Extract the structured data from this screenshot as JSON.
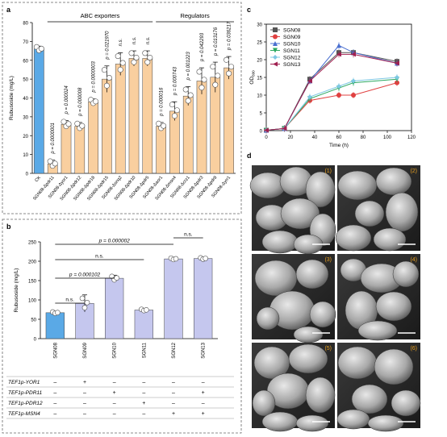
{
  "panels": {
    "a": "a",
    "b": "b",
    "c": "c",
    "d": "d"
  },
  "panel_a": {
    "groups": [
      "ABC exporters",
      "Regulators"
    ]
  },
  "panel_b": {
    "table_rows": [
      {
        "label": "TEF1p-YOR1",
        "marks": [
          "–",
          "+",
          "–",
          "–",
          "–",
          "–"
        ]
      },
      {
        "label": "TEF1p-PDR11",
        "marks": [
          "–",
          "–",
          "+",
          "–",
          "–",
          "+"
        ]
      },
      {
        "label": "TEF1p-PDR12",
        "marks": [
          "–",
          "–",
          "–",
          "+",
          "–",
          "–"
        ]
      },
      {
        "label": "TEF1p-MSN4",
        "marks": [
          "–",
          "–",
          "–",
          "–",
          "+",
          "+"
        ]
      }
    ],
    "comparisons": [
      {
        "label": "n.s."
      },
      {
        "label": "p = 0.000102"
      },
      {
        "label": "n.s."
      },
      {
        "label": "p = 0.000002"
      },
      {
        "label": "n.s."
      }
    ]
  },
  "panel_d": {
    "micrographs": [
      "(1)",
      "(2)",
      "(3)",
      "(4)",
      "(5)",
      "(6)"
    ],
    "colors": {
      "label": "#e8a020"
    }
  },
  "chart_data": [
    {
      "id": "a",
      "type": "bar",
      "ylabel": "Rubusoside (mg/L)",
      "ylim": [
        0,
        80
      ],
      "yticks": [
        0,
        10,
        20,
        30,
        40,
        50,
        60,
        70,
        80
      ],
      "categories": [
        "CK",
        "SGN08-Δpdr11",
        "SGN08-Δyor1",
        "SGN08-Δpdr12",
        "SGN08-Δpdr18",
        "SGN08-Δpdr15",
        "SGN08-Δsnq2",
        "SGN08-Δpdr10",
        "SGN08-Δpdr5",
        "SGN08-Δaor1",
        "SGN08-Δmsn4",
        "SGN08-Δcrz1",
        "SGN08-Δpdr3",
        "SGN08-Δpdr8",
        "SGN08-Δyrr1"
      ],
      "values": [
        66,
        5,
        26,
        25,
        38,
        50,
        58,
        61,
        61,
        25,
        33,
        41,
        49,
        51,
        56
      ],
      "errors": [
        1.5,
        2,
        2,
        2,
        1.5,
        7,
        6,
        4,
        4,
        2,
        5,
        5,
        7,
        8,
        6
      ],
      "pvalues": [
        "",
        "p = 0.0000001",
        "p = 0.000024",
        "p = 0.000008",
        "p = 0.0000003",
        "p = 0.021970",
        "n.s.",
        "n.s.",
        "n.s.",
        "p = 0.000016",
        "p = 0.000743",
        "p = 0.001223",
        "p = 0.042293",
        "p = 0.013176",
        "p = 0.036217"
      ],
      "colors": {
        "control": "#5aa9e6",
        "bars": "#f9cf9f",
        "dots": "#ffffff"
      }
    },
    {
      "id": "b",
      "type": "bar",
      "ylabel": "Rubusoside (mg/L)",
      "ylim": [
        0,
        250
      ],
      "yticks": [
        0,
        50,
        100,
        150,
        200,
        250
      ],
      "categories": [
        "SGN08",
        "SGN09",
        "SGN10",
        "SGN11",
        "SGN12",
        "SGN13"
      ],
      "values": [
        67,
        91,
        156,
        74,
        206,
        207
      ],
      "errors": [
        3,
        22,
        8,
        3,
        3,
        3
      ],
      "colors": {
        "control": "#5aa9e6",
        "bars": "#c5c7ee"
      }
    },
    {
      "id": "c",
      "type": "line",
      "xlabel": "Time (h)",
      "ylabel": "OD600",
      "xlim": [
        0,
        120
      ],
      "ylim": [
        0,
        30
      ],
      "xticks": [
        0,
        20,
        40,
        60,
        80,
        100,
        120
      ],
      "yticks": [
        0,
        5,
        10,
        15,
        20,
        25,
        30
      ],
      "x": [
        0,
        15,
        36,
        60,
        72,
        108
      ],
      "series": [
        {
          "name": "SGN08",
          "values": [
            0.1,
            0.6,
            14.5,
            22.0,
            22.0,
            19.5
          ],
          "color": "#555555",
          "marker": "square"
        },
        {
          "name": "SGN09",
          "values": [
            0.1,
            0.6,
            8.5,
            10.0,
            10.0,
            13.5
          ],
          "color": "#e04040",
          "marker": "circle"
        },
        {
          "name": "SGN10",
          "values": [
            0.1,
            0.6,
            14.0,
            24.0,
            22.0,
            19.0
          ],
          "color": "#4a6fd0",
          "marker": "triangle"
        },
        {
          "name": "SGN11",
          "values": [
            0.1,
            0.6,
            9.0,
            12.0,
            13.5,
            14.5
          ],
          "color": "#2aa860",
          "marker": "triangle-down"
        },
        {
          "name": "SGN12",
          "values": [
            0.1,
            0.6,
            9.5,
            12.5,
            14.0,
            15.0
          ],
          "color": "#7ec8e3",
          "marker": "diamond"
        },
        {
          "name": "SGN13",
          "values": [
            0.1,
            0.6,
            14.0,
            21.5,
            21.5,
            19.0
          ],
          "color": "#a02050",
          "marker": "triangle-left"
        }
      ]
    }
  ]
}
